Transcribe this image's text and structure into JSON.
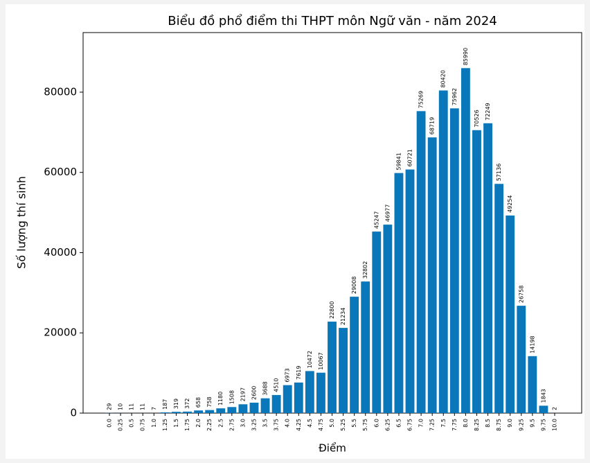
{
  "chart_data": {
    "type": "bar",
    "title": "Biểu đồ phổ điểm thi THPT môn Ngữ văn - năm 2024",
    "xlabel": "Điểm",
    "ylabel": "Số lượng thí sinh",
    "categories": [
      "0.0",
      "0.25",
      "0.5",
      "0.75",
      "1.0",
      "1.25",
      "1.5",
      "1.75",
      "2.0",
      "2.25",
      "2.5",
      "2.75",
      "3.0",
      "3.25",
      "3.5",
      "3.75",
      "4.0",
      "4.25",
      "4.5",
      "4.75",
      "5.0",
      "5.25",
      "5.5",
      "5.75",
      "6.0",
      "6.25",
      "6.5",
      "6.75",
      "7.0",
      "7.25",
      "7.5",
      "7.75",
      "8.0",
      "8.25",
      "8.5",
      "8.75",
      "9.0",
      "9.25",
      "9.5",
      "9.75",
      "10.0"
    ],
    "values": [
      29,
      10,
      11,
      11,
      7,
      187,
      319,
      372,
      658,
      758,
      1180,
      1508,
      2197,
      2600,
      3688,
      4510,
      6973,
      7619,
      10472,
      10067,
      22800,
      21234,
      29008,
      32802,
      45247,
      46977,
      59841,
      60721,
      75269,
      68719,
      80420,
      75962,
      85990,
      70526,
      72249,
      57136,
      49254,
      26758,
      14198,
      1843,
      2
    ],
    "color": "#0a77bb",
    "ylim": [
      0,
      94850
    ],
    "yticks": [
      0,
      20000,
      40000,
      60000,
      80000
    ]
  }
}
